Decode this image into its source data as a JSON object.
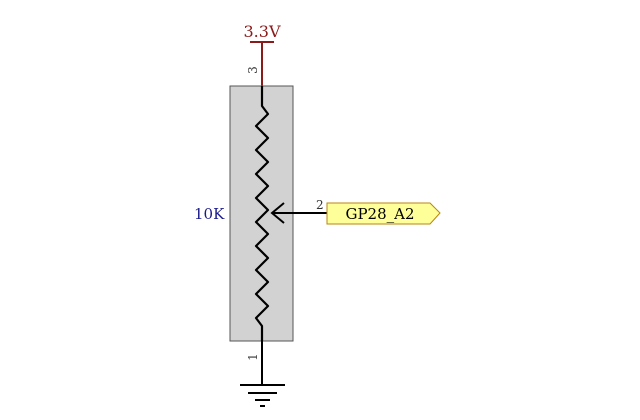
{
  "power": {
    "label": "3.3V",
    "color": "#8b1a1a"
  },
  "component": {
    "value": "10K",
    "value_color": "#1a1a8c",
    "body_color": "#d2d2d2"
  },
  "pins": {
    "top": "3",
    "wiper": "2",
    "bottom": "1"
  },
  "net_label": {
    "text": "GP28_A2",
    "fill": "#ffff99",
    "border": "#b8860b"
  },
  "wire_color": "#000000",
  "ground": {
    "symbol": "ground-icon"
  }
}
